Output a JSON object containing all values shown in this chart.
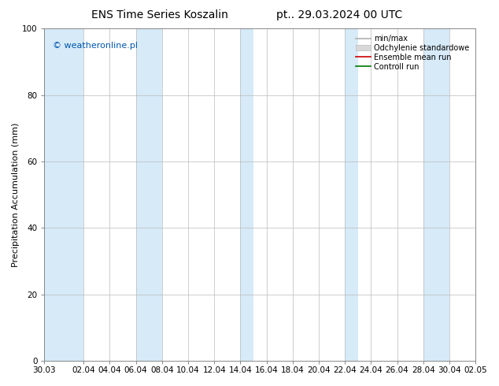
{
  "title": "ENS Time Series Koszalin",
  "title_right": "pt.. 29.03.2024 00 UTC",
  "ylabel": "Precipitation Accumulation (mm)",
  "watermark": "© weatheronline.pl",
  "ylim": [
    0,
    100
  ],
  "yticks": [
    0,
    20,
    40,
    60,
    80,
    100
  ],
  "x_tick_labels": [
    "30.03",
    "02.04",
    "04.04",
    "06.04",
    "08.04",
    "10.04",
    "12.04",
    "14.04",
    "16.04",
    "18.04",
    "20.04",
    "22.04",
    "24.04",
    "26.04",
    "28.04",
    "30.04",
    "02.05"
  ],
  "x_tick_positions": [
    0,
    3,
    5,
    7,
    9,
    11,
    13,
    15,
    17,
    19,
    21,
    23,
    25,
    27,
    29,
    31,
    33
  ],
  "xlim": [
    0,
    33
  ],
  "band_color": "#d6eaf8",
  "band_segments": [
    [
      0,
      3
    ],
    [
      7,
      9
    ],
    [
      15,
      16
    ],
    [
      23,
      24
    ],
    [
      29,
      31
    ]
  ],
  "bg_color": "#ffffff",
  "legend_items": [
    {
      "label": "min/max",
      "color": "#b0b0b0",
      "lw": 1.2
    },
    {
      "label": "Odchylenie standardowe",
      "color": "#d0d0d0",
      "lw": 5
    },
    {
      "label": "Ensemble mean run",
      "color": "#cc0000",
      "lw": 1.2
    },
    {
      "label": "Controll run",
      "color": "#007700",
      "lw": 1.2
    }
  ],
  "title_fontsize": 10,
  "axis_fontsize": 8,
  "tick_fontsize": 7.5,
  "watermark_color": "#0055aa",
  "grid_color": "#dddddd",
  "spine_color": "#888888"
}
